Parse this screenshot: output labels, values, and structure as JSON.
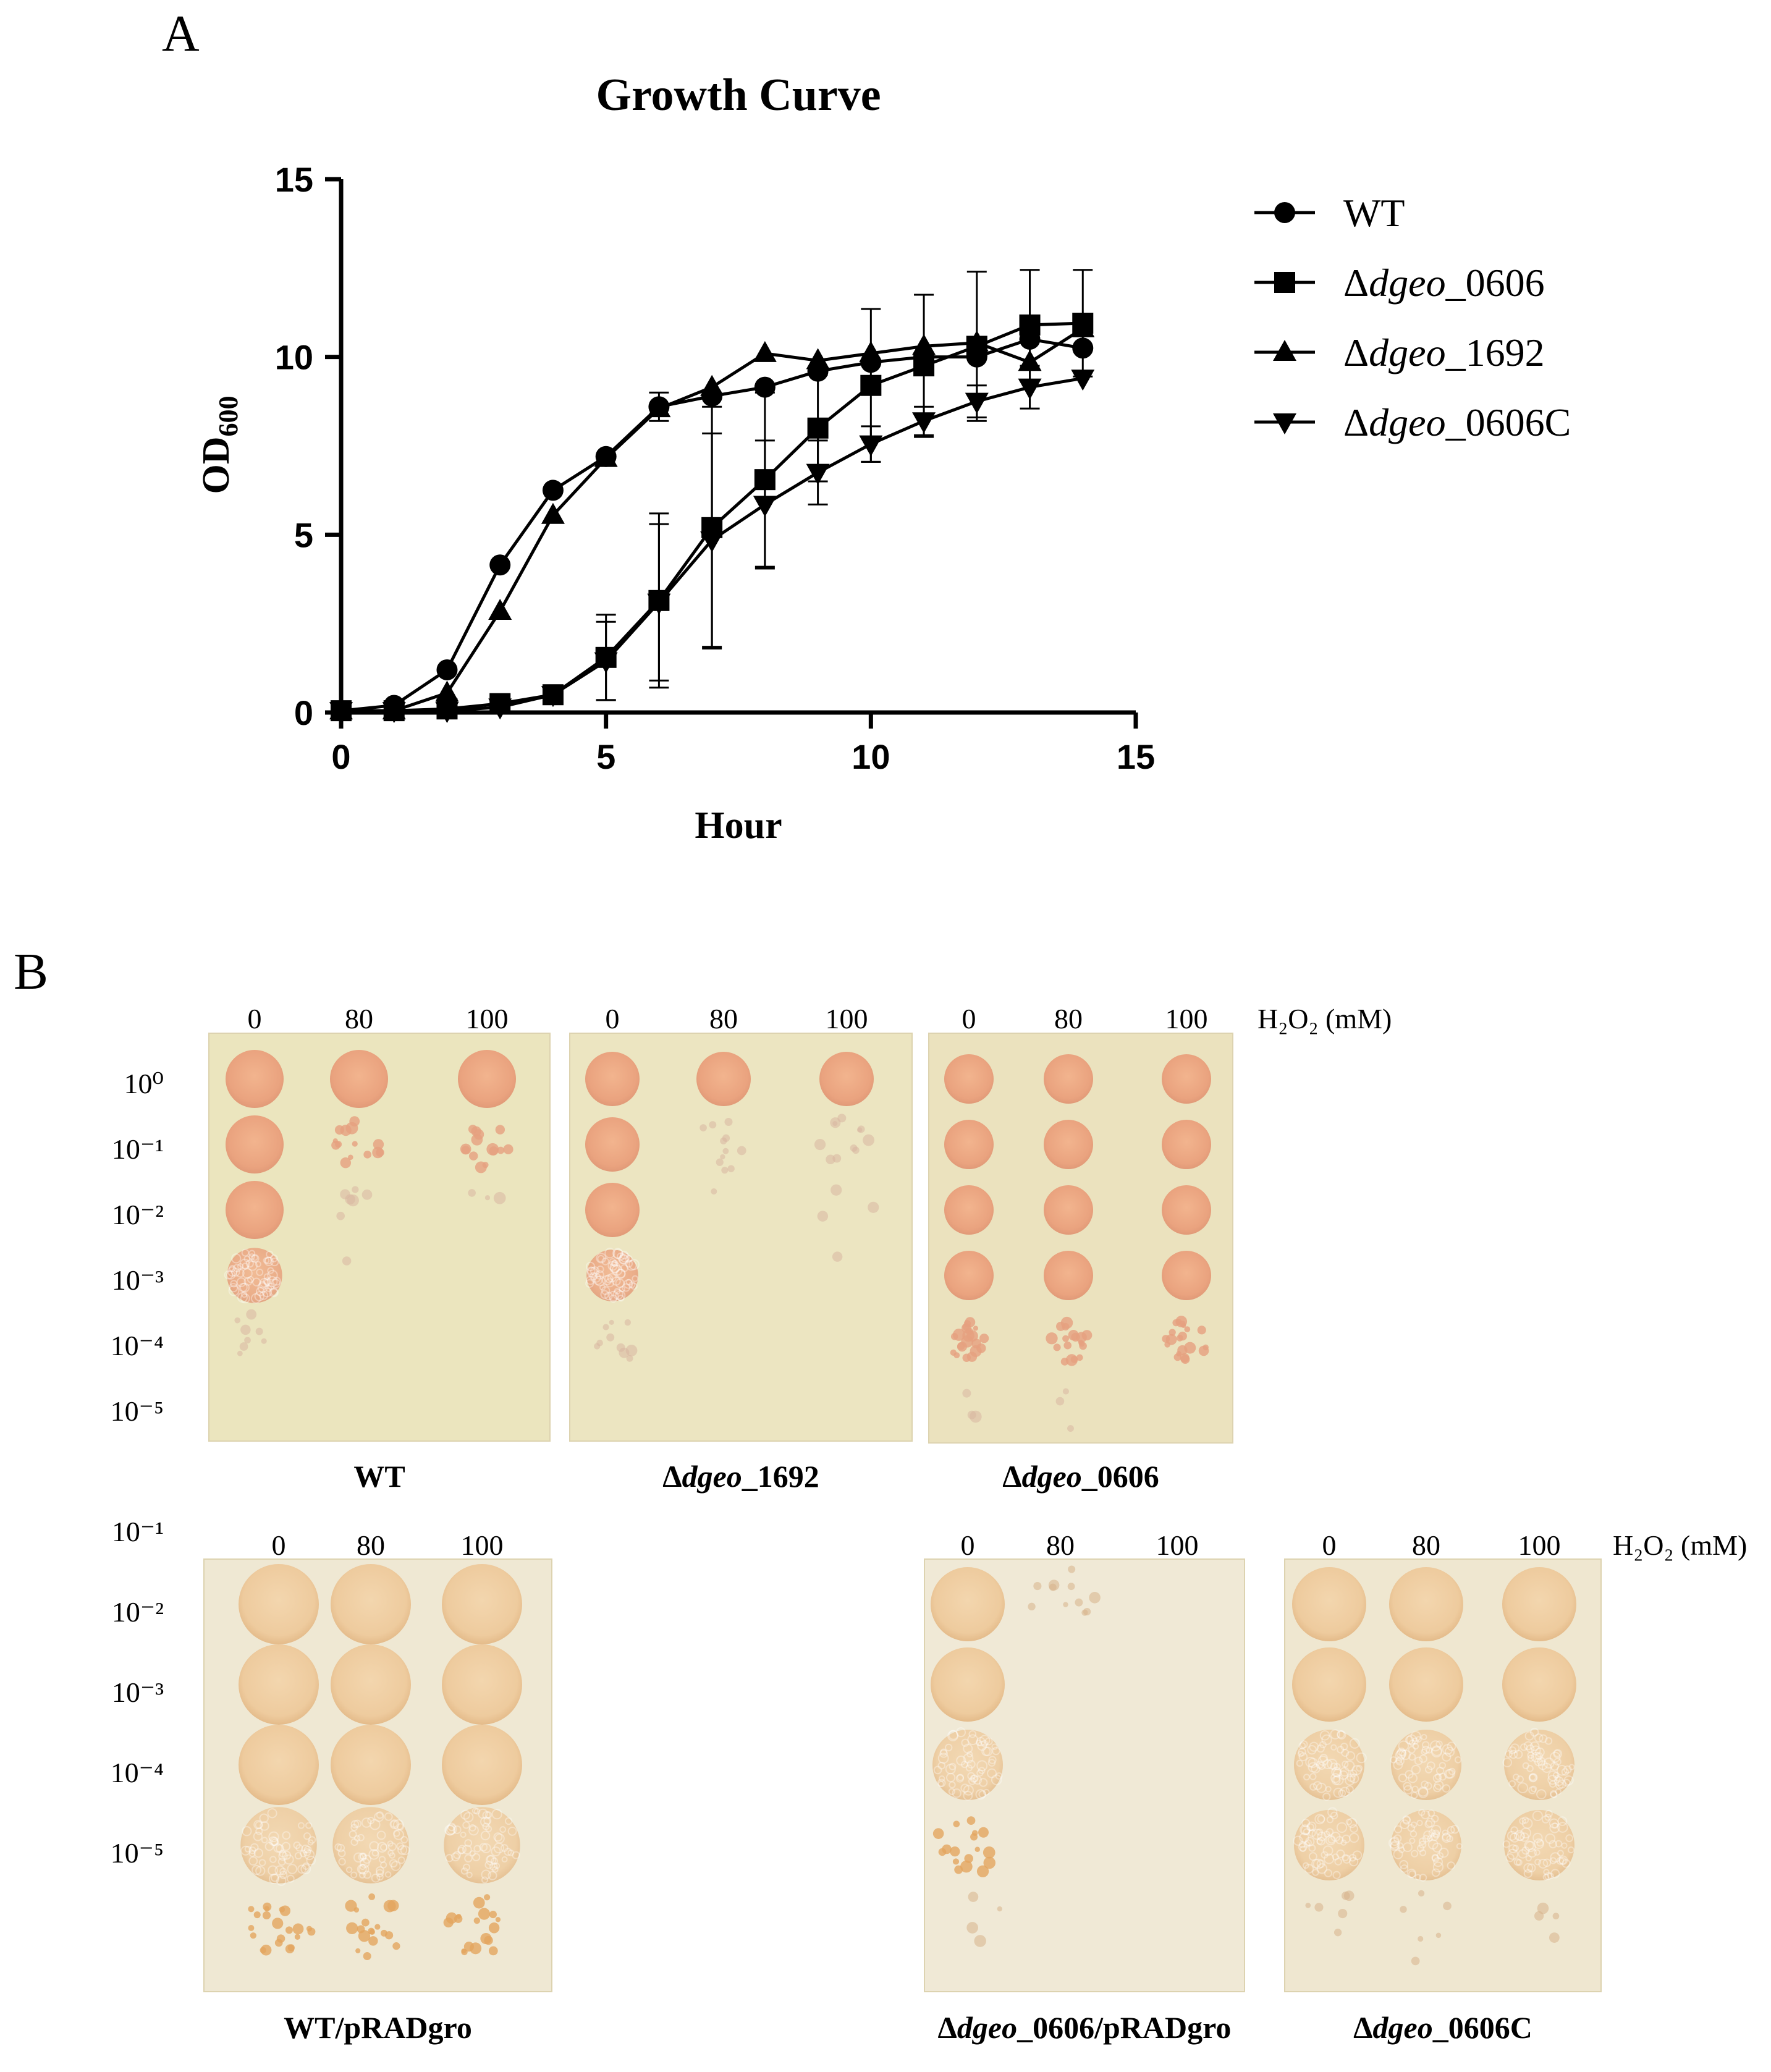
{
  "figure": {
    "panel_a_label": "A",
    "panel_b_label": "B"
  },
  "chart_data": {
    "type": "line",
    "title": "Growth Curve",
    "xlabel": "Hour",
    "ylabel": "OD",
    "ylabel_subscript": "600",
    "xlim": [
      0,
      15
    ],
    "ylim": [
      0,
      15
    ],
    "xticks": [
      "0",
      "5",
      "10",
      "15"
    ],
    "yticks": [
      "0",
      "5",
      "10",
      "15"
    ],
    "x": [
      0,
      1,
      2,
      3,
      4,
      5,
      6,
      7,
      8,
      9,
      10,
      11,
      12,
      13,
      14
    ],
    "series": [
      {
        "name": "WT",
        "prefix": "",
        "italic": "",
        "suffix": "WT",
        "marker": "circle",
        "values": [
          0.05,
          0.2,
          1.2,
          4.15,
          6.25,
          7.2,
          8.6,
          8.9,
          9.15,
          9.6,
          9.85,
          10.0,
          10.0,
          10.5,
          10.25
        ],
        "errors": [
          0.05,
          0.1,
          0.15,
          0.15,
          0.15,
          0.15,
          0.4,
          0.3,
          0.3,
          0.3,
          0.3,
          0.3,
          0.3,
          0.3,
          0.3
        ]
      },
      {
        "name": "Δdgeo_0606",
        "prefix": "Δ",
        "italic": "dgeo",
        "suffix": "_0606",
        "marker": "square",
        "values": [
          0.05,
          0.05,
          0.1,
          0.25,
          0.5,
          1.55,
          3.15,
          5.2,
          6.55,
          8.0,
          9.2,
          9.75,
          10.3,
          10.9,
          10.95
        ],
        "errors": [
          0.05,
          0.05,
          0.05,
          0.1,
          0.15,
          1.2,
          2.45,
          3.4,
          2.45,
          1.5,
          2.15,
          2.0,
          2.1,
          1.55,
          1.5
        ]
      },
      {
        "name": "Δdgeo_1692",
        "prefix": "Δ",
        "italic": "dgeo",
        "suffix": "_1692",
        "marker": "triangle-up",
        "values": [
          0.05,
          0.05,
          0.55,
          2.85,
          5.55,
          7.15,
          8.55,
          9.15,
          10.1,
          9.9,
          10.1,
          10.3,
          10.4,
          9.85,
          10.8
        ],
        "errors": [
          0.05,
          0.05,
          0.1,
          0.15,
          0.2,
          0.15,
          0.2,
          0.2,
          0.2,
          0.3,
          0.3,
          0.3,
          0.3,
          0.3,
          0.3
        ]
      },
      {
        "name": "Δdgeo_0606C",
        "prefix": "Δ",
        "italic": "dgeo",
        "suffix": "_0606C",
        "marker": "triangle-down",
        "values": [
          0.05,
          0.05,
          0.05,
          0.15,
          0.5,
          1.45,
          3.1,
          4.85,
          5.85,
          6.75,
          7.55,
          8.2,
          8.75,
          9.15,
          9.4
        ],
        "errors": [
          0.05,
          0.05,
          0.05,
          0.1,
          0.15,
          1.1,
          2.2,
          3.0,
          1.8,
          0.9,
          0.5,
          0.4,
          0.45,
          0.6,
          0.2
        ]
      }
    ]
  },
  "spot_assay": {
    "unit_label": "H₂O₂ (mM)",
    "rows": [
      {
        "concentrations": [
          "0",
          "80",
          "100"
        ],
        "show_unit": true,
        "dilutions": [
          "10⁰",
          "10⁻¹",
          "10⁻²",
          "10⁻³",
          "10⁻⁴",
          "10⁻⁵"
        ],
        "plates": [
          {
            "name": "WT",
            "prefix": "",
            "italic": "",
            "suffix": "WT",
            "growth": [
              [
                3,
                3,
                3
              ],
              [
                3,
                1,
                1
              ],
              [
                3,
                0.4,
                0.2
              ],
              [
                2.5,
                0.1,
                0
              ],
              [
                0.6,
                0,
                0
              ],
              [
                0,
                0,
                0
              ]
            ]
          },
          {
            "name": "Δdgeo_1692",
            "prefix": "Δ",
            "italic": "dgeo",
            "suffix": "_1692",
            "growth": [
              [
                3,
                3,
                3
              ],
              [
                3,
                0.8,
                0.8
              ],
              [
                3,
                0.1,
                0.2
              ],
              [
                2.5,
                0,
                0.1
              ],
              [
                0.7,
                0,
                0
              ],
              [
                0,
                0,
                0
              ]
            ]
          },
          {
            "name": "Δdgeo_0606",
            "prefix": "Δ",
            "italic": "dgeo",
            "suffix": "_0606",
            "growth": [
              [
                3,
                3,
                3
              ],
              [
                3,
                3,
                3
              ],
              [
                3,
                3,
                3
              ],
              [
                2.8,
                2.8,
                2.8
              ],
              [
                1.5,
                1.3,
                1.5
              ],
              [
                0.2,
                0.2,
                0
              ]
            ]
          }
        ]
      },
      {
        "concentrations": [
          "0",
          "80",
          "100"
        ],
        "show_unit": true,
        "dilutions": [
          "10⁻¹",
          "10⁻²",
          "10⁻³",
          "10⁻⁴",
          "10⁻⁵"
        ],
        "plates": [
          {
            "name": "WT/pRADgro",
            "prefix": "",
            "italic": "",
            "suffix": "WT/pRADgro",
            "growth": [
              [
                3,
                3,
                3
              ],
              [
                3,
                3,
                3
              ],
              [
                3,
                3,
                3
              ],
              [
                2.5,
                2.5,
                2.5
              ],
              [
                1.5,
                1.3,
                1.3
              ]
            ]
          },
          {
            "name": "Δdgeo_0606/pRADgro",
            "prefix": "Δ",
            "italic": "dgeo",
            "suffix": "_0606/pRADgro",
            "growth": [
              [
                3,
                0.8,
                0
              ],
              [
                2.8,
                0,
                0
              ],
              [
                2.3,
                0,
                0
              ],
              [
                1.2,
                0,
                0
              ],
              [
                0.3,
                0,
                0
              ]
            ]
          },
          {
            "name": "Δdgeo_0606C",
            "prefix": "Δ",
            "italic": "dgeo",
            "suffix": "_0606C",
            "growth": [
              [
                3,
                3,
                3
              ],
              [
                3,
                3,
                3
              ],
              [
                2.6,
                2.6,
                2.6
              ],
              [
                2.1,
                2.1,
                2.1
              ],
              [
                0.4,
                0.4,
                0.3
              ]
            ]
          }
        ]
      }
    ]
  }
}
